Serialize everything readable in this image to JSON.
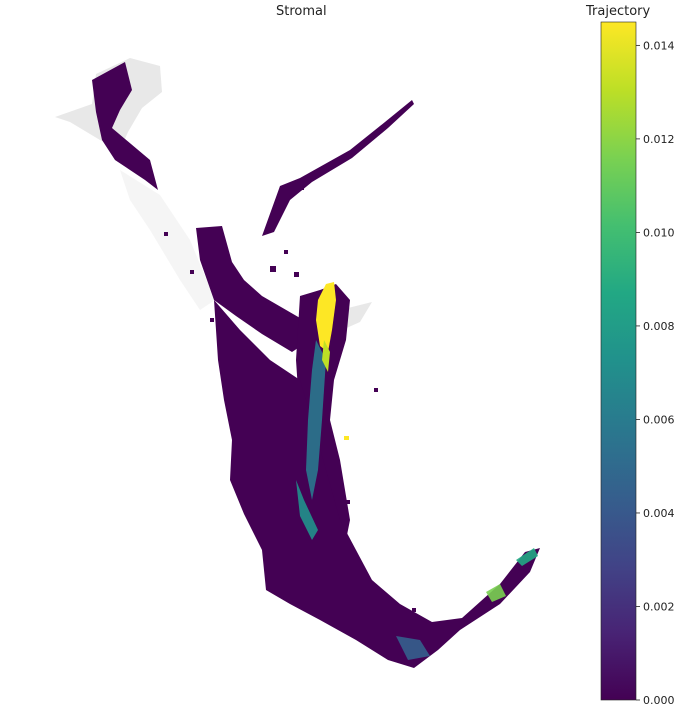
{
  "chart_data": {
    "type": "scatter",
    "title": "Stromal",
    "xlabel": "",
    "ylabel": "",
    "axes_visible": false,
    "colorbar": {
      "label": "Trajectory",
      "colormap": "viridis",
      "range": [
        0.0,
        0.0145
      ],
      "ticks": [
        "0.000",
        "0.002",
        "0.004",
        "0.006",
        "0.008",
        "0.010",
        "0.012",
        "0.014"
      ]
    },
    "background_points_color": "#e6e6e6",
    "hotspots": [
      {
        "region": "central upper column",
        "value": 0.0145
      },
      {
        "region": "central spine",
        "value": 0.008
      },
      {
        "region": "lower right arm",
        "value": 0.006
      },
      {
        "region": "bulk body",
        "value": 0.0002
      }
    ]
  },
  "colors": {
    "low": "#440154",
    "mid": "#21918c",
    "high": "#fde725",
    "background_cells": "#e6e6e6"
  }
}
